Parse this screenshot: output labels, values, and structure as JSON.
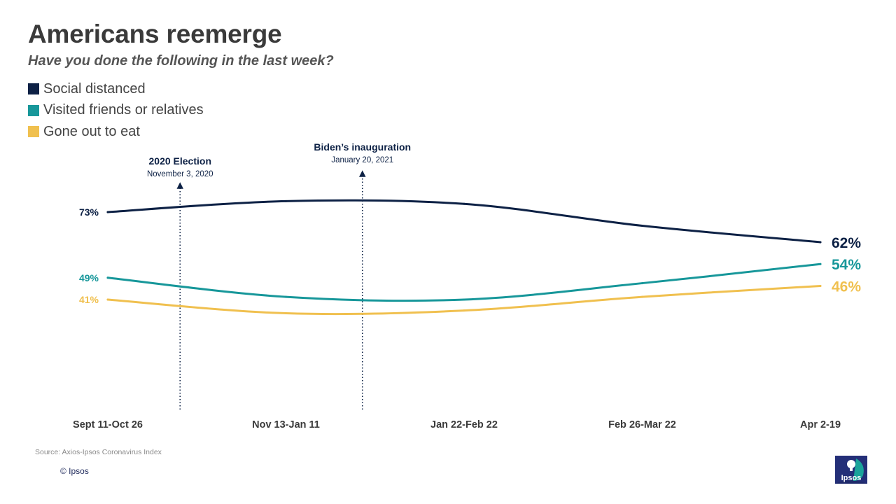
{
  "title": "Americans reemerge",
  "subtitle": "Have you done the following in the last week?",
  "legend": [
    {
      "label": "Social distanced",
      "color": "#0d2145"
    },
    {
      "label": "Visited friends or relatives",
      "color": "#17979a"
    },
    {
      "label": "Gone out to eat",
      "color": "#f0c04f"
    }
  ],
  "annotations": [
    {
      "title": "2020 Election",
      "date": "November  3, 2020",
      "after_category": 0
    },
    {
      "title": "Biden’s inauguration",
      "date": "January  20, 2021",
      "after_category": 1
    }
  ],
  "chart_data": {
    "type": "line",
    "title": "Americans reemerge",
    "subtitle": "Have you done the following in the last week?",
    "categories": [
      "Sept 11-Oct 26",
      "Nov 13-Jan 11",
      "Jan 22-Feb 22",
      "Feb 26-Mar 22",
      "Apr 2-19"
    ],
    "series": [
      {
        "name": "Social distanced",
        "color": "#0d2145",
        "values": [
          73,
          77,
          76,
          68,
          62
        ],
        "start_label": "73%",
        "end_label": "62%"
      },
      {
        "name": "Visited friends or relatives",
        "color": "#17979a",
        "values": [
          49,
          42,
          41,
          47,
          54
        ],
        "start_label": "49%",
        "end_label": "54%"
      },
      {
        "name": "Gone out to eat",
        "color": "#f0c04f",
        "values": [
          41,
          36,
          37,
          42,
          46
        ],
        "start_label": "41%",
        "end_label": "46%"
      }
    ],
    "xlabel": "",
    "ylabel": "",
    "ylim": [
      0,
      100
    ],
    "grid": false,
    "smooth": true
  },
  "footer": {
    "source": "Source: Axios-Ipsos Coronavirus Index",
    "copyright": "© Ipsos",
    "logo_text": "Ipsos"
  }
}
